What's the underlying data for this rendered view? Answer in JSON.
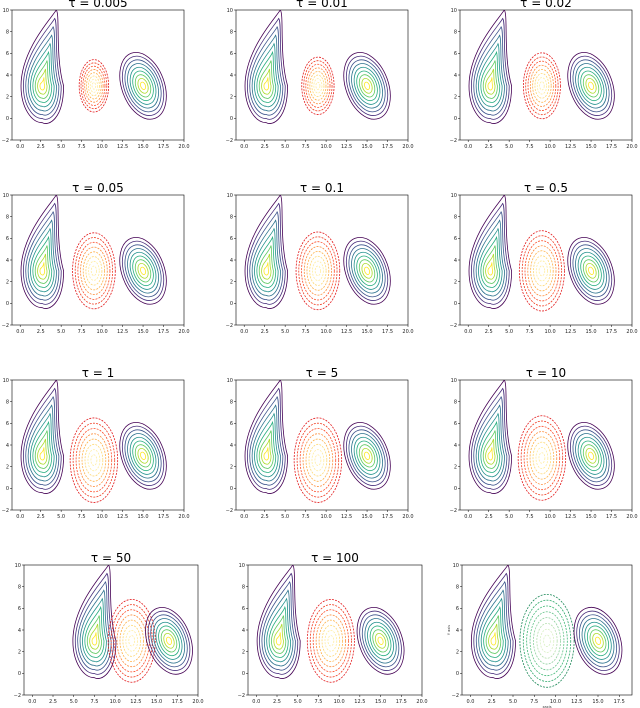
{
  "chart_data": [
    {
      "type": "contour",
      "title": "τ = 0.005",
      "red_scale": 0.62,
      "xlim": [
        -1,
        20
      ],
      "ylim": [
        -2,
        10
      ],
      "xticks": [
        "0.0",
        "2.5",
        "5.0",
        "7.5",
        "10.0",
        "12.5",
        "15.0",
        "17.5",
        "20.0"
      ],
      "yticks": [
        "−2",
        "0",
        "2",
        "4",
        "6",
        "8",
        "10"
      ],
      "centers": {
        "left": [
          2.7,
          3.0
        ],
        "middle": [
          9.0,
          3.0
        ],
        "right": [
          15.0,
          3.0
        ]
      }
    },
    {
      "type": "contour",
      "title": "τ = 0.01",
      "red_scale": 0.68,
      "xlim": [
        -1,
        20
      ],
      "ylim": [
        -2,
        10
      ],
      "xticks": [
        "0.0",
        "2.5",
        "5.0",
        "7.5",
        "10.0",
        "12.5",
        "15.0",
        "17.5",
        "20.0"
      ],
      "yticks": [
        "−2",
        "0",
        "2",
        "4",
        "6",
        "8",
        "10"
      ],
      "centers": {
        "left": [
          2.7,
          3.0
        ],
        "middle": [
          9.0,
          3.0
        ],
        "right": [
          15.0,
          3.0
        ]
      }
    },
    {
      "type": "contour",
      "title": "τ = 0.02",
      "red_scale": 0.78,
      "xlim": [
        -1,
        20
      ],
      "ylim": [
        -2,
        10
      ],
      "xticks": [
        "0.0",
        "2.5",
        "5.0",
        "7.5",
        "10.0",
        "12.5",
        "15.0",
        "17.5",
        "20.0"
      ],
      "yticks": [
        "−2",
        "0",
        "2",
        "4",
        "6",
        "8",
        "10"
      ],
      "centers": {
        "left": [
          2.7,
          3.0
        ],
        "middle": [
          9.0,
          3.0
        ],
        "right": [
          15.0,
          3.0
        ]
      }
    },
    {
      "type": "contour",
      "title": "τ = 0.05",
      "red_scale": 0.9,
      "xlim": [
        -1,
        20
      ],
      "ylim": [
        -2,
        10
      ],
      "xticks": [
        "0.0",
        "2.5",
        "5.0",
        "7.5",
        "10.0",
        "12.5",
        "15.0",
        "17.5",
        "20.0"
      ],
      "yticks": [
        "−2",
        "0",
        "2",
        "4",
        "6",
        "8",
        "10"
      ],
      "centers": {
        "left": [
          2.7,
          3.0
        ],
        "middle": [
          9.0,
          3.0
        ],
        "right": [
          15.0,
          3.0
        ]
      }
    },
    {
      "type": "contour",
      "title": "τ = 0.1",
      "red_scale": 0.92,
      "xlim": [
        -1,
        20
      ],
      "ylim": [
        -2,
        10
      ],
      "xticks": [
        "0.0",
        "2.5",
        "5.0",
        "7.5",
        "10.0",
        "12.5",
        "15.0",
        "17.5",
        "20.0"
      ],
      "yticks": [
        "−2",
        "0",
        "2",
        "4",
        "6",
        "8",
        "10"
      ],
      "centers": {
        "left": [
          2.7,
          3.0
        ],
        "middle": [
          9.0,
          3.0
        ],
        "right": [
          15.0,
          3.0
        ]
      }
    },
    {
      "type": "contour",
      "title": "τ = 0.5",
      "red_scale": 0.95,
      "xlim": [
        -1,
        20
      ],
      "ylim": [
        -2,
        10
      ],
      "xticks": [
        "0.0",
        "2.5",
        "5.0",
        "7.5",
        "10.0",
        "12.5",
        "15.0",
        "17.5",
        "20.0"
      ],
      "yticks": [
        "−2",
        "0",
        "2",
        "4",
        "6",
        "8",
        "10"
      ],
      "centers": {
        "left": [
          2.7,
          3.0
        ],
        "middle": [
          9.0,
          3.0
        ],
        "right": [
          15.0,
          3.0
        ]
      }
    },
    {
      "type": "contour",
      "title": "τ = 1",
      "red_scale": 1.0,
      "xlim": [
        -1,
        20
      ],
      "ylim": [
        -2,
        10
      ],
      "xticks": [
        "0.0",
        "2.5",
        "5.0",
        "7.5",
        "10.0",
        "12.5",
        "15.0",
        "17.5",
        "20.0"
      ],
      "yticks": [
        "−2",
        "0",
        "2",
        "4",
        "6",
        "8",
        "10"
      ],
      "centers": {
        "left": [
          2.7,
          3.0
        ],
        "middle": [
          9.0,
          2.6
        ],
        "right": [
          15.0,
          3.0
        ]
      }
    },
    {
      "type": "contour",
      "title": "τ = 5",
      "red_scale": 1.0,
      "xlim": [
        -1,
        20
      ],
      "ylim": [
        -2,
        10
      ],
      "xticks": [
        "0.0",
        "2.5",
        "5.0",
        "7.5",
        "10.0",
        "12.5",
        "15.0",
        "17.5",
        "20.0"
      ],
      "yticks": [
        "−2",
        "0",
        "2",
        "4",
        "6",
        "8",
        "10"
      ],
      "centers": {
        "left": [
          2.7,
          3.0
        ],
        "middle": [
          9.0,
          2.6
        ],
        "right": [
          15.0,
          3.0
        ]
      }
    },
    {
      "type": "contour",
      "title": "τ = 10",
      "red_scale": 1.0,
      "xlim": [
        -1,
        20
      ],
      "ylim": [
        -2,
        10
      ],
      "xticks": [
        "0.0",
        "2.5",
        "5.0",
        "7.5",
        "10.0",
        "12.5",
        "15.0",
        "17.5",
        "20.0"
      ],
      "yticks": [
        "−2",
        "0",
        "2",
        "4",
        "6",
        "8",
        "10"
      ],
      "centers": {
        "left": [
          2.7,
          3.0
        ],
        "middle": [
          9.0,
          2.8
        ],
        "right": [
          15.0,
          3.0
        ]
      }
    },
    {
      "type": "contour",
      "title": "τ = 50",
      "red_scale": 0.98,
      "xlim": [
        -1,
        20
      ],
      "ylim": [
        -2,
        10
      ],
      "xticks": [
        "0.0",
        "2.5",
        "5.0",
        "7.5",
        "10.0",
        "12.5",
        "15.0",
        "17.5",
        "20.0"
      ],
      "yticks": [
        "−2",
        "0",
        "2",
        "4",
        "6",
        "8",
        "10"
      ],
      "centers": {
        "left": [
          7.5,
          3.0
        ],
        "middle": [
          12.0,
          3.0
        ],
        "right": [
          16.5,
          3.0
        ]
      }
    },
    {
      "type": "contour",
      "title": "τ = 100",
      "red_scale": 0.98,
      "xlim": [
        -1,
        20
      ],
      "ylim": [
        -2,
        10
      ],
      "xticks": [
        "0.0",
        "2.5",
        "5.0",
        "7.5",
        "10.0",
        "12.5",
        "15.0",
        "17.5",
        "20.0"
      ],
      "yticks": [
        "−2",
        "0",
        "2",
        "4",
        "6",
        "8",
        "10"
      ],
      "centers": {
        "left": [
          2.7,
          3.0
        ],
        "middle": [
          9.0,
          3.0
        ],
        "right": [
          15.0,
          3.0
        ]
      }
    },
    {
      "type": "contour",
      "title": "",
      "red_scale": 1.1,
      "xlim": [
        -1,
        19
      ],
      "ylim": [
        -2,
        10
      ],
      "xticks": [
        "0.0",
        "2.5",
        "5.0",
        "7.5",
        "10.0",
        "12.5",
        "15.0",
        "17.5"
      ],
      "yticks": [
        "−2",
        "0",
        "2",
        "4",
        "6",
        "8",
        "10"
      ],
      "centers": {
        "left": [
          2.7,
          3.0
        ],
        "middle": [
          9.0,
          3.0
        ],
        "right": [
          15.0,
          3.0
        ]
      },
      "middle_style": "green",
      "xlabel": "xaxis",
      "ylabel": "Y axis"
    }
  ]
}
